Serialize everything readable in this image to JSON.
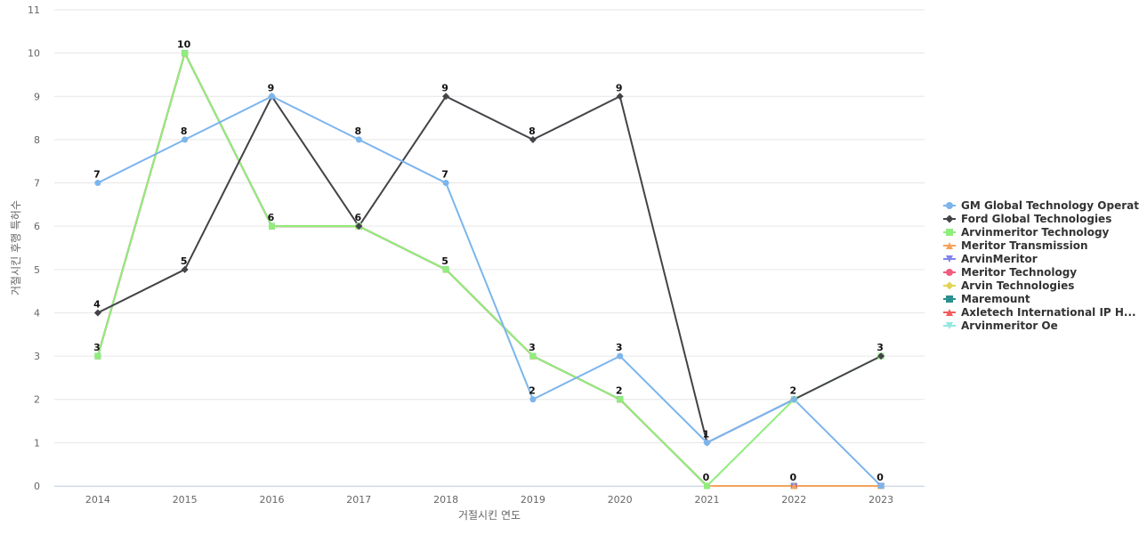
{
  "chart_data": {
    "type": "line",
    "title": "",
    "xlabel": "거절시킨 연도",
    "ylabel": "거절시킨 후행 특허수",
    "categories": [
      "2014",
      "2015",
      "2016",
      "2017",
      "2018",
      "2019",
      "2020",
      "2021",
      "2022",
      "2023"
    ],
    "ylim": [
      0,
      11
    ],
    "yticks": [
      0,
      1,
      2,
      3,
      4,
      5,
      6,
      7,
      8,
      9,
      10,
      11
    ],
    "grid": true,
    "legend_position": "right",
    "series": [
      {
        "name": "GM Global Technology Operat...",
        "color": "#7cb5ec",
        "marker": "circle",
        "values": [
          7,
          8,
          9,
          8,
          7,
          2,
          3,
          1,
          2,
          0
        ]
      },
      {
        "name": "Ford Global Technologies",
        "color": "#434348",
        "marker": "diamond",
        "values": [
          4,
          5,
          9,
          6,
          9,
          8,
          9,
          1,
          2,
          3
        ]
      },
      {
        "name": "Arvinmeritor Technology",
        "color": "#90ed7d",
        "marker": "square",
        "values": [
          3,
          10,
          6,
          6,
          5,
          3,
          2,
          0,
          2,
          3
        ]
      },
      {
        "name": "Meritor Transmission",
        "color": "#f7a35c",
        "marker": "triangle",
        "values": [
          3,
          10,
          6,
          6,
          5,
          3,
          2,
          0,
          0,
          0
        ]
      },
      {
        "name": "ArvinMeritor",
        "color": "#8085e9",
        "marker": "triangle-down",
        "values": [
          3,
          10,
          6,
          6,
          5,
          3,
          2,
          0,
          0,
          0
        ]
      },
      {
        "name": "Meritor Technology",
        "color": "#f15c80",
        "marker": "circle",
        "values": [
          3,
          10,
          6,
          6,
          5,
          3,
          2,
          0,
          0,
          0
        ]
      },
      {
        "name": "Arvin Technologies",
        "color": "#e4d354",
        "marker": "diamond",
        "values": [
          3,
          10,
          6,
          6,
          5,
          3,
          2,
          0,
          0,
          0
        ]
      },
      {
        "name": "Maremount",
        "color": "#2b908f",
        "marker": "square",
        "values": [
          3,
          10,
          6,
          6,
          5,
          3,
          2,
          0,
          0,
          0
        ]
      },
      {
        "name": "Axletech International IP H...",
        "color": "#f45b5b",
        "marker": "triangle",
        "values": [
          3,
          10,
          6,
          6,
          5,
          3,
          2,
          0,
          0,
          0
        ]
      },
      {
        "name": "Arvinmeritor Oe",
        "color": "#91e8e1",
        "marker": "triangle-down",
        "values": [
          3,
          10,
          6,
          6,
          5,
          3,
          2,
          0,
          0,
          0
        ]
      }
    ],
    "data_labels": [
      {
        "category": "2014",
        "value": 7,
        "text": "7"
      },
      {
        "category": "2014",
        "value": 4,
        "text": "4"
      },
      {
        "category": "2014",
        "value": 3,
        "text": "3"
      },
      {
        "category": "2015",
        "value": 10,
        "text": "10"
      },
      {
        "category": "2015",
        "value": 8,
        "text": "8"
      },
      {
        "category": "2015",
        "value": 5,
        "text": "5"
      },
      {
        "category": "2016",
        "value": 9,
        "text": "9"
      },
      {
        "category": "2016",
        "value": 6,
        "text": "6"
      },
      {
        "category": "2017",
        "value": 8,
        "text": "8"
      },
      {
        "category": "2017",
        "value": 6,
        "text": "6"
      },
      {
        "category": "2018",
        "value": 9,
        "text": "9"
      },
      {
        "category": "2018",
        "value": 7,
        "text": "7"
      },
      {
        "category": "2018",
        "value": 5,
        "text": "5"
      },
      {
        "category": "2019",
        "value": 8,
        "text": "8"
      },
      {
        "category": "2019",
        "value": 3,
        "text": "3"
      },
      {
        "category": "2019",
        "value": 2,
        "text": "2"
      },
      {
        "category": "2020",
        "value": 9,
        "text": "9"
      },
      {
        "category": "2020",
        "value": 3,
        "text": "3"
      },
      {
        "category": "2020",
        "value": 2,
        "text": "2"
      },
      {
        "category": "2021",
        "value": 1,
        "text": "1"
      },
      {
        "category": "2021",
        "value": 0,
        "text": "0"
      },
      {
        "category": "2022",
        "value": 2,
        "text": "2"
      },
      {
        "category": "2022",
        "value": 0,
        "text": "0"
      },
      {
        "category": "2023",
        "value": 3,
        "text": "3"
      },
      {
        "category": "2023",
        "value": 0,
        "text": "0"
      }
    ]
  }
}
